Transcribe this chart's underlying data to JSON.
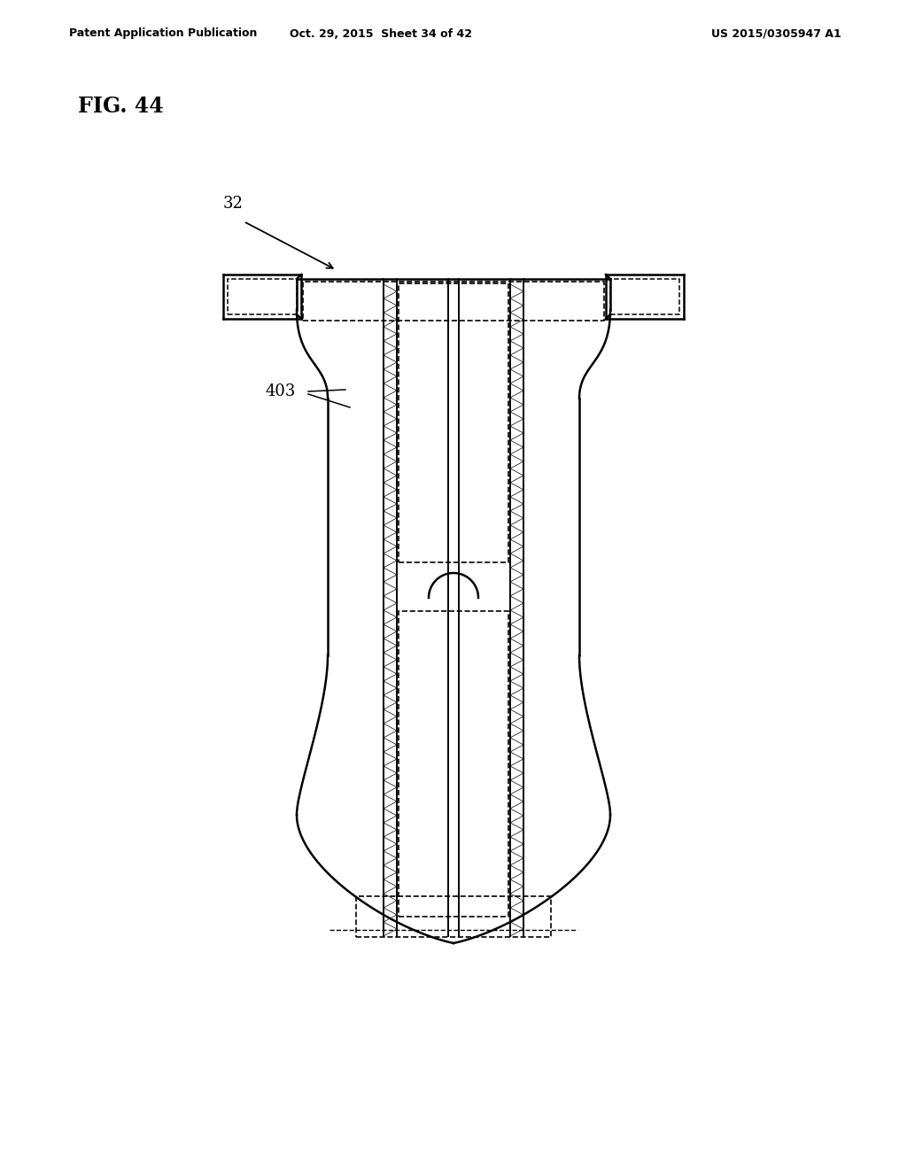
{
  "bg_color": "#ffffff",
  "line_color": "#000000",
  "header_left": "Patent Application Publication",
  "header_center": "Oct. 29, 2015  Sheet 34 of 42",
  "header_right": "US 2015/0305947 A1",
  "fig_label": "FIG. 44",
  "label_32": "32",
  "label_403": "403",
  "figsize": [
    10.24,
    13.2
  ],
  "dpi": 100
}
